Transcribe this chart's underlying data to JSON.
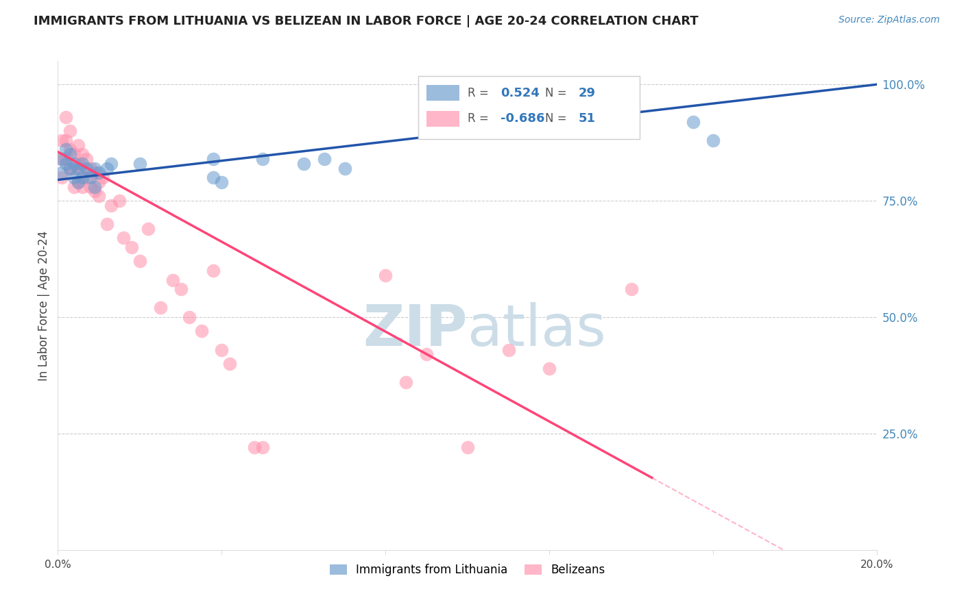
{
  "title": "IMMIGRANTS FROM LITHUANIA VS BELIZEAN IN LABOR FORCE | AGE 20-24 CORRELATION CHART",
  "source": "Source: ZipAtlas.com",
  "ylabel": "In Labor Force | Age 20-24",
  "xmin": 0.0,
  "xmax": 0.2,
  "ymin": 0.0,
  "ymax": 1.05,
  "right_yticks": [
    0.25,
    0.5,
    0.75,
    1.0
  ],
  "right_yticklabels": [
    "25.0%",
    "50.0%",
    "75.0%",
    "100.0%"
  ],
  "blue_color": "#6699CC",
  "pink_color": "#FF8FAB",
  "blue_line_color": "#2255AA",
  "pink_line_color": "#FF4477",
  "watermark_color": "#CCDDEE",
  "blue_R": "0.524",
  "blue_N": "29",
  "pink_R": "-0.686",
  "pink_N": "51",
  "blue_line_x0": 0.0,
  "blue_line_y0": 0.795,
  "blue_line_x1": 0.2,
  "blue_line_y1": 1.0,
  "pink_line_x0": 0.0,
  "pink_line_y0": 0.855,
  "pink_line_x1": 0.145,
  "pink_line_y1": 0.155,
  "blue_scatter_x": [
    0.001,
    0.001,
    0.002,
    0.002,
    0.003,
    0.003,
    0.004,
    0.004,
    0.005,
    0.005,
    0.006,
    0.006,
    0.007,
    0.008,
    0.009,
    0.009,
    0.01,
    0.012,
    0.013,
    0.02,
    0.038,
    0.04,
    0.05,
    0.06,
    0.065,
    0.07,
    0.155,
    0.16,
    0.038
  ],
  "blue_scatter_y": [
    0.84,
    0.81,
    0.83,
    0.86,
    0.85,
    0.82,
    0.83,
    0.8,
    0.82,
    0.79,
    0.83,
    0.8,
    0.82,
    0.8,
    0.82,
    0.78,
    0.81,
    0.82,
    0.83,
    0.83,
    0.84,
    0.79,
    0.84,
    0.83,
    0.84,
    0.82,
    0.92,
    0.88,
    0.8
  ],
  "pink_scatter_x": [
    0.001,
    0.001,
    0.001,
    0.002,
    0.002,
    0.002,
    0.003,
    0.003,
    0.003,
    0.004,
    0.004,
    0.004,
    0.005,
    0.005,
    0.005,
    0.006,
    0.006,
    0.006,
    0.007,
    0.007,
    0.008,
    0.008,
    0.009,
    0.009,
    0.01,
    0.01,
    0.011,
    0.012,
    0.013,
    0.015,
    0.016,
    0.018,
    0.02,
    0.022,
    0.025,
    0.028,
    0.03,
    0.032,
    0.035,
    0.038,
    0.04,
    0.042,
    0.048,
    0.05,
    0.08,
    0.085,
    0.09,
    0.1,
    0.11,
    0.12,
    0.14
  ],
  "pink_scatter_y": [
    0.88,
    0.84,
    0.8,
    0.93,
    0.88,
    0.84,
    0.9,
    0.86,
    0.82,
    0.85,
    0.82,
    0.78,
    0.87,
    0.83,
    0.79,
    0.85,
    0.82,
    0.78,
    0.84,
    0.8,
    0.82,
    0.78,
    0.81,
    0.77,
    0.79,
    0.76,
    0.8,
    0.7,
    0.74,
    0.75,
    0.67,
    0.65,
    0.62,
    0.69,
    0.52,
    0.58,
    0.56,
    0.5,
    0.47,
    0.6,
    0.43,
    0.4,
    0.22,
    0.22,
    0.59,
    0.36,
    0.42,
    0.22,
    0.43,
    0.39,
    0.56
  ]
}
